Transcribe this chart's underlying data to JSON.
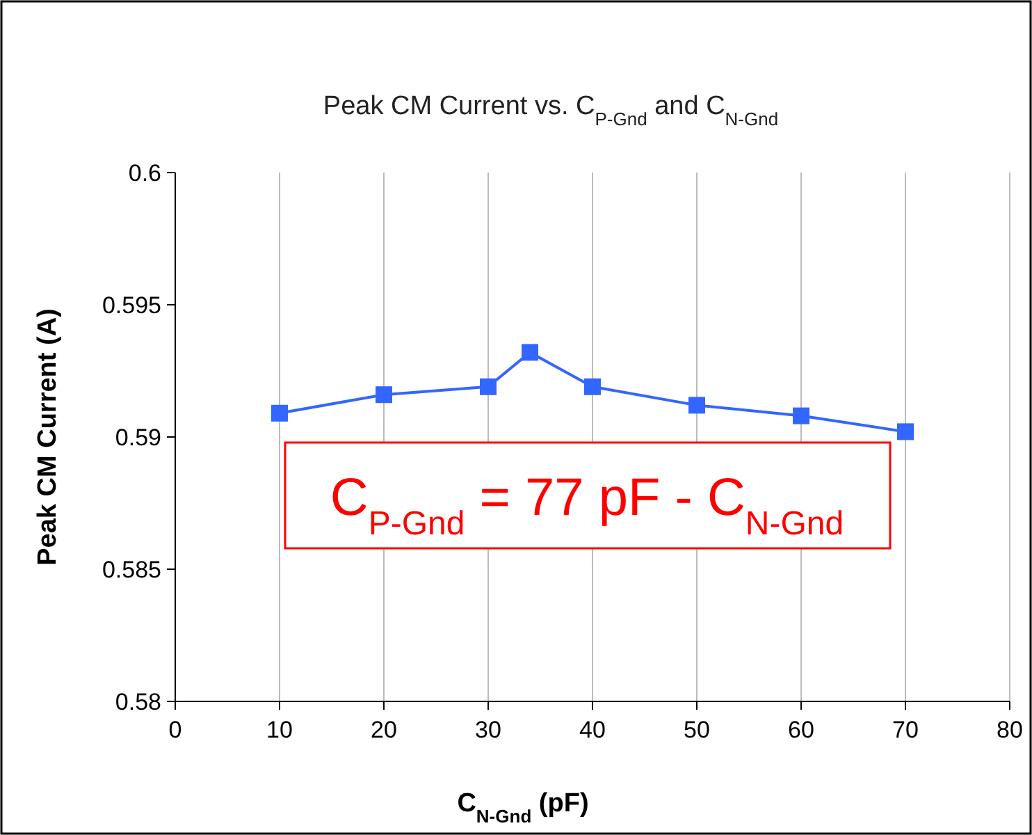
{
  "chart_data": {
    "type": "line",
    "title": "Peak CM Current vs. C$_{P-Gnd}$  and C$_{N-Gnd}$",
    "xlabel": "C$_{N-Gnd}$  (pF)",
    "ylabel": "Peak CM Current (A)",
    "x": [
      10,
      20,
      30,
      34,
      40,
      50,
      60,
      70
    ],
    "series": [
      {
        "color": "#3366ff",
        "values": [
          0.5909,
          0.5916,
          0.5919,
          0.5932,
          0.5919,
          0.5912,
          0.5908,
          0.5902
        ]
      }
    ],
    "xlim": [
      0,
      80
    ],
    "xticks": [
      0,
      10,
      20,
      30,
      40,
      50,
      60,
      70,
      80
    ],
    "ylim": [
      0.58,
      0.6
    ],
    "yticks": [
      0.58,
      0.585,
      0.59,
      0.595,
      0.6
    ],
    "grid": "x",
    "marker": "square",
    "line_style": "solid",
    "annotations": [
      "C$_{P-Gnd}$ = 77 pF - C$_{N-Gnd}$"
    ]
  }
}
